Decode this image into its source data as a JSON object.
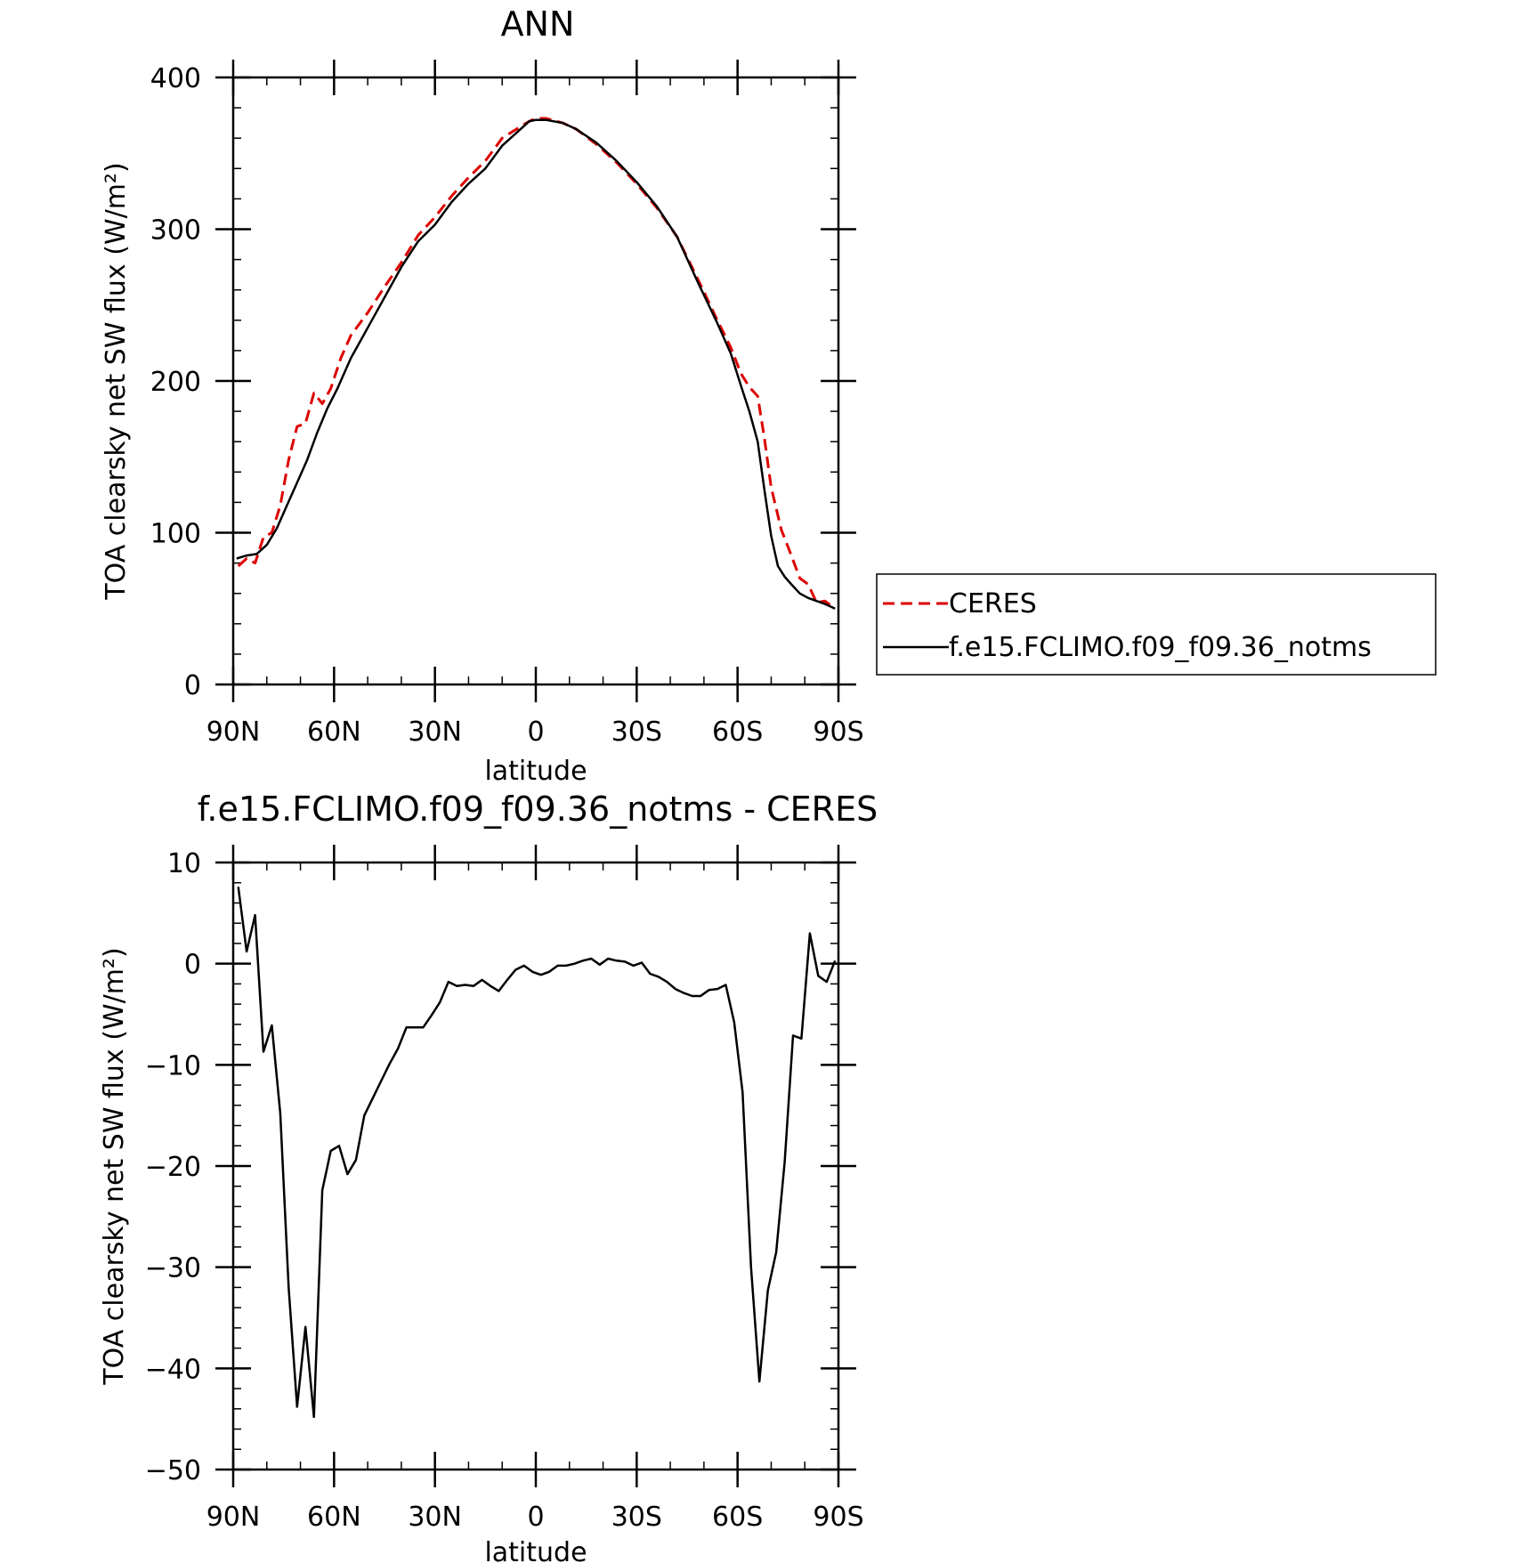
{
  "chart_data": [
    {
      "type": "line",
      "title": "ANN",
      "xlabel": "latitude",
      "ylabel": "TOA clearsky net SW flux (W/m²)",
      "xlim": [
        90,
        -90
      ],
      "ylim": [
        0,
        400
      ],
      "yticks": [
        0,
        100,
        200,
        300,
        400
      ],
      "yminor": 20,
      "xticks": [
        {
          "v": 90,
          "label": "90N"
        },
        {
          "v": 60,
          "label": "60N"
        },
        {
          "v": 30,
          "label": "30N"
        },
        {
          "v": 0,
          "label": "0"
        },
        {
          "v": -30,
          "label": "30S"
        },
        {
          "v": -60,
          "label": "60S"
        },
        {
          "v": -90,
          "label": "90S"
        }
      ],
      "xminor": 10,
      "grid": false,
      "legend": {
        "placement": "right",
        "entries": [
          {
            "label": "CERES",
            "color": "#dd0000",
            "dash": "dashed"
          },
          {
            "label": "f.e15.FCLIMO.f09_f09.36_notms",
            "color": "#000000",
            "dash": "solid"
          }
        ]
      },
      "series": [
        {
          "name": "CERES",
          "color": "#dd0000",
          "dash": "dashed",
          "points": [
            [
              88.5,
              78
            ],
            [
              86,
              83
            ],
            [
              83.5,
              80
            ],
            [
              81,
              97
            ],
            [
              78.5,
              100
            ],
            [
              76,
              118
            ],
            [
              73.5,
              148
            ],
            [
              71,
              170
            ],
            [
              68.5,
              172
            ],
            [
              66,
              192
            ],
            [
              63.5,
              185
            ],
            [
              61,
              195
            ],
            [
              58,
              215
            ],
            [
              55,
              230
            ],
            [
              50,
              245
            ],
            [
              45,
              262
            ],
            [
              40,
              278
            ],
            [
              35,
              296
            ],
            [
              30,
              308
            ],
            [
              25,
              322
            ],
            [
              20,
              334
            ],
            [
              15,
              345
            ],
            [
              10,
              360
            ],
            [
              5,
              367
            ],
            [
              2,
              371
            ],
            [
              0,
              373
            ],
            [
              -3,
              373
            ],
            [
              -8,
              370
            ],
            [
              -12,
              366
            ],
            [
              -18,
              356
            ],
            [
              -24,
              344
            ],
            [
              -30,
              330
            ],
            [
              -36,
              314
            ],
            [
              -42,
              295
            ],
            [
              -48,
              268
            ],
            [
              -54,
              240
            ],
            [
              -58,
              222
            ],
            [
              -61,
              205
            ],
            [
              -63.5,
              196
            ],
            [
              -66,
              190
            ],
            [
              -68,
              162
            ],
            [
              -70,
              130
            ],
            [
              -73,
              102
            ],
            [
              -76,
              85
            ],
            [
              -78.5,
              70
            ],
            [
              -81,
              66
            ],
            [
              -83.5,
              54
            ],
            [
              -86,
              55
            ],
            [
              -89,
              50
            ]
          ]
        },
        {
          "name": "f.e15.FCLIMO.f09_f09.36_notms",
          "color": "#000000",
          "dash": "solid",
          "points": [
            [
              89,
              83
            ],
            [
              86,
              85
            ],
            [
              83,
              86
            ],
            [
              80,
              92
            ],
            [
              77,
              103
            ],
            [
              74,
              118
            ],
            [
              71,
              133
            ],
            [
              68,
              148
            ],
            [
              65,
              166
            ],
            [
              62,
              182
            ],
            [
              59,
              195
            ],
            [
              55,
              215
            ],
            [
              50,
              235
            ],
            [
              45,
              255
            ],
            [
              40,
              275
            ],
            [
              35,
              292
            ],
            [
              30,
              303
            ],
            [
              25,
              318
            ],
            [
              20,
              330
            ],
            [
              15,
              340
            ],
            [
              10,
              355
            ],
            [
              5,
              365
            ],
            [
              2,
              371
            ],
            [
              0,
              372
            ],
            [
              -3,
              372
            ],
            [
              -8,
              370
            ],
            [
              -12,
              366
            ],
            [
              -18,
              357
            ],
            [
              -24,
              345
            ],
            [
              -30,
              331
            ],
            [
              -36,
              315
            ],
            [
              -42,
              295
            ],
            [
              -48,
              266
            ],
            [
              -54,
              238
            ],
            [
              -58,
              218
            ],
            [
              -61,
              197
            ],
            [
              -63.5,
              180
            ],
            [
              -66,
              160
            ],
            [
              -68,
              128
            ],
            [
              -70,
              98
            ],
            [
              -72,
              78
            ],
            [
              -74,
              71
            ],
            [
              -76,
              66
            ],
            [
              -78.5,
              60
            ],
            [
              -81,
              57
            ],
            [
              -83.5,
              55
            ],
            [
              -86,
              53
            ],
            [
              -89,
              50
            ]
          ]
        }
      ]
    },
    {
      "type": "line",
      "title": "f.e15.FCLIMO.f09_f09.36_notms - CERES",
      "xlabel": "latitude",
      "ylabel": "TOA clearsky net SW flux (W/m²)",
      "xlim": [
        90,
        -90
      ],
      "ylim": [
        -50,
        10
      ],
      "yticks": [
        -50,
        -40,
        -30,
        -20,
        -10,
        0,
        10
      ],
      "yminor": 2,
      "xticks": [
        {
          "v": 90,
          "label": "90N"
        },
        {
          "v": 60,
          "label": "60N"
        },
        {
          "v": 30,
          "label": "30N"
        },
        {
          "v": 0,
          "label": "0"
        },
        {
          "v": -30,
          "label": "30S"
        },
        {
          "v": -60,
          "label": "60S"
        },
        {
          "v": -90,
          "label": "90S"
        }
      ],
      "xminor": 10,
      "grid": false,
      "series": [
        {
          "color": "#000000",
          "dash": "solid",
          "points": [
            [
              88.5,
              7.6
            ],
            [
              86,
              1.2
            ],
            [
              83.5,
              4.8
            ],
            [
              81,
              -8.7
            ],
            [
              78.5,
              -6.1
            ],
            [
              76,
              -14.8
            ],
            [
              73.5,
              -32
            ],
            [
              71,
              -43.8
            ],
            [
              68.5,
              -35.9
            ],
            [
              66,
              -44.8
            ],
            [
              63.5,
              -22.4
            ],
            [
              61,
              -18.5
            ],
            [
              58.5,
              -18
            ],
            [
              56,
              -20.8
            ],
            [
              53.5,
              -19.4
            ],
            [
              51,
              -15
            ],
            [
              48.5,
              -13.3
            ],
            [
              46,
              -11.6
            ],
            [
              43.5,
              -9.9
            ],
            [
              41,
              -8.4
            ],
            [
              38.5,
              -6.3
            ],
            [
              33.5,
              -6.3
            ],
            [
              31,
              -5.1
            ],
            [
              28.5,
              -3.8
            ],
            [
              26,
              -1.8
            ],
            [
              23.5,
              -2.2
            ],
            [
              21,
              -2.1
            ],
            [
              18.5,
              -2.2
            ],
            [
              16,
              -1.6
            ],
            [
              13.5,
              -2.2
            ],
            [
              11,
              -2.7
            ],
            [
              8.5,
              -1.6
            ],
            [
              6,
              -0.6
            ],
            [
              3.5,
              -0.2
            ],
            [
              1,
              -0.8
            ],
            [
              -1.5,
              -1.1
            ],
            [
              -4,
              -0.8
            ],
            [
              -6.5,
              -0.2
            ],
            [
              -9,
              -0.2
            ],
            [
              -11.5,
              0
            ],
            [
              -14,
              0.3
            ],
            [
              -16.5,
              0.5
            ],
            [
              -19,
              -0.1
            ],
            [
              -21.5,
              0.5
            ],
            [
              -24,
              0.3
            ],
            [
              -26.5,
              0.2
            ],
            [
              -29,
              -0.2
            ],
            [
              -31.5,
              0.1
            ],
            [
              -34,
              -1
            ],
            [
              -36.5,
              -1.3
            ],
            [
              -39,
              -1.8
            ],
            [
              -41.5,
              -2.5
            ],
            [
              -44,
              -2.9
            ],
            [
              -46.5,
              -3.2
            ],
            [
              -49,
              -3.2
            ],
            [
              -51.5,
              -2.6
            ],
            [
              -54,
              -2.5
            ],
            [
              -56.5,
              -2.1
            ],
            [
              -59,
              -5.8
            ],
            [
              -61.5,
              -12.7
            ],
            [
              -64,
              -30
            ],
            [
              -66.5,
              -41.3
            ],
            [
              -69,
              -32.3
            ],
            [
              -71.5,
              -28.5
            ],
            [
              -74,
              -19.6
            ],
            [
              -76.5,
              -7.1
            ],
            [
              -79,
              -7.4
            ],
            [
              -81.5,
              3
            ],
            [
              -84,
              -1.2
            ],
            [
              -86.5,
              -1.8
            ],
            [
              -89,
              0.3
            ]
          ]
        }
      ]
    }
  ]
}
